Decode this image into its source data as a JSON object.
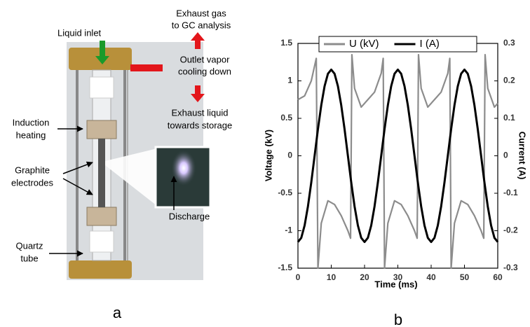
{
  "figure_a": {
    "panel_label": "a",
    "liquid_inlet": "Liquid inlet",
    "exhaust_gas": [
      "Exhaust gas",
      "to GC analysis"
    ],
    "outlet_vapor": [
      "Outlet vapor",
      "cooling down"
    ],
    "exhaust_liquid": [
      "Exhaust liquid",
      "towards storage"
    ],
    "induction_heating": [
      "Induction",
      "heating"
    ],
    "graphite_electrodes": [
      "Graphite",
      "electrodes"
    ],
    "discharge": "Discharge",
    "quartz_tube": [
      "Quartz",
      "tube"
    ]
  },
  "chart_data": {
    "type": "line",
    "panel_label": "b",
    "x_label": "Time (ms)",
    "y_label": "Voltage (kV)",
    "y2_label": "Current (A)",
    "xlim": [
      0,
      60
    ],
    "xticks": [
      0,
      10,
      20,
      30,
      40,
      50,
      60
    ],
    "ylim": [
      -1.5,
      1.5
    ],
    "yticks": [
      -1.5,
      -1,
      -0.5,
      0,
      0.5,
      1,
      1.5
    ],
    "y2lim": [
      -0.3,
      0.3
    ],
    "y2ticks": [
      -0.3,
      -0.2,
      -0.1,
      0,
      0.1,
      0.2,
      0.3
    ],
    "legend": "top",
    "series": [
      {
        "name": "U (kV)",
        "color": "#8c8c8c",
        "axis": "y",
        "x": [
          0,
          2,
          4,
          5.5,
          6,
          7,
          9,
          11,
          13,
          15,
          15.8,
          16.2,
          17,
          19,
          21,
          23,
          25,
          25.6,
          26,
          27,
          29,
          31,
          33,
          35,
          35.8,
          36.2,
          37,
          39,
          41,
          43,
          45,
          45.6,
          46,
          47,
          49,
          51,
          53,
          55,
          55.8,
          56.2,
          57,
          59,
          60
        ],
        "values": [
          0.75,
          0.8,
          1.0,
          1.3,
          -1.5,
          -0.9,
          -0.6,
          -0.65,
          -0.8,
          -1.0,
          -1.1,
          1.35,
          0.9,
          0.65,
          0.75,
          0.85,
          1.1,
          1.3,
          -1.5,
          -0.9,
          -0.6,
          -0.65,
          -0.8,
          -1.0,
          -1.1,
          1.35,
          0.9,
          0.65,
          0.75,
          0.85,
          1.1,
          1.3,
          -1.5,
          -0.9,
          -0.6,
          -0.65,
          -0.8,
          -1.0,
          -1.1,
          1.35,
          0.9,
          0.65,
          0.7
        ]
      },
      {
        "name": "I (A)",
        "color": "#000000",
        "axis": "y2",
        "x": [
          0,
          1,
          2,
          3,
          4,
          5,
          6,
          7,
          8,
          9,
          10,
          11,
          12,
          13,
          14,
          15,
          16,
          17,
          18,
          19,
          20,
          21,
          22,
          23,
          24,
          25,
          26,
          27,
          28,
          29,
          30,
          31,
          32,
          33,
          34,
          35,
          36,
          37,
          38,
          39,
          40,
          41,
          42,
          43,
          44,
          45,
          46,
          47,
          48,
          49,
          50,
          51,
          52,
          53,
          54,
          55,
          56,
          57,
          58,
          59,
          60
        ],
        "values": [
          -0.23,
          -0.219,
          -0.186,
          -0.135,
          -0.071,
          0,
          0.071,
          0.135,
          0.186,
          0.219,
          0.23,
          0.219,
          0.186,
          0.135,
          0.071,
          0,
          -0.071,
          -0.135,
          -0.186,
          -0.219,
          -0.23,
          -0.219,
          -0.186,
          -0.135,
          -0.071,
          0,
          0.071,
          0.135,
          0.186,
          0.219,
          0.23,
          0.219,
          0.186,
          0.135,
          0.071,
          0,
          -0.071,
          -0.135,
          -0.186,
          -0.219,
          -0.23,
          -0.219,
          -0.186,
          -0.135,
          -0.071,
          0,
          0.071,
          0.135,
          0.186,
          0.219,
          0.23,
          0.219,
          0.186,
          0.135,
          0.071,
          0,
          -0.071,
          -0.135,
          -0.186,
          -0.219,
          -0.23
        ]
      }
    ]
  }
}
